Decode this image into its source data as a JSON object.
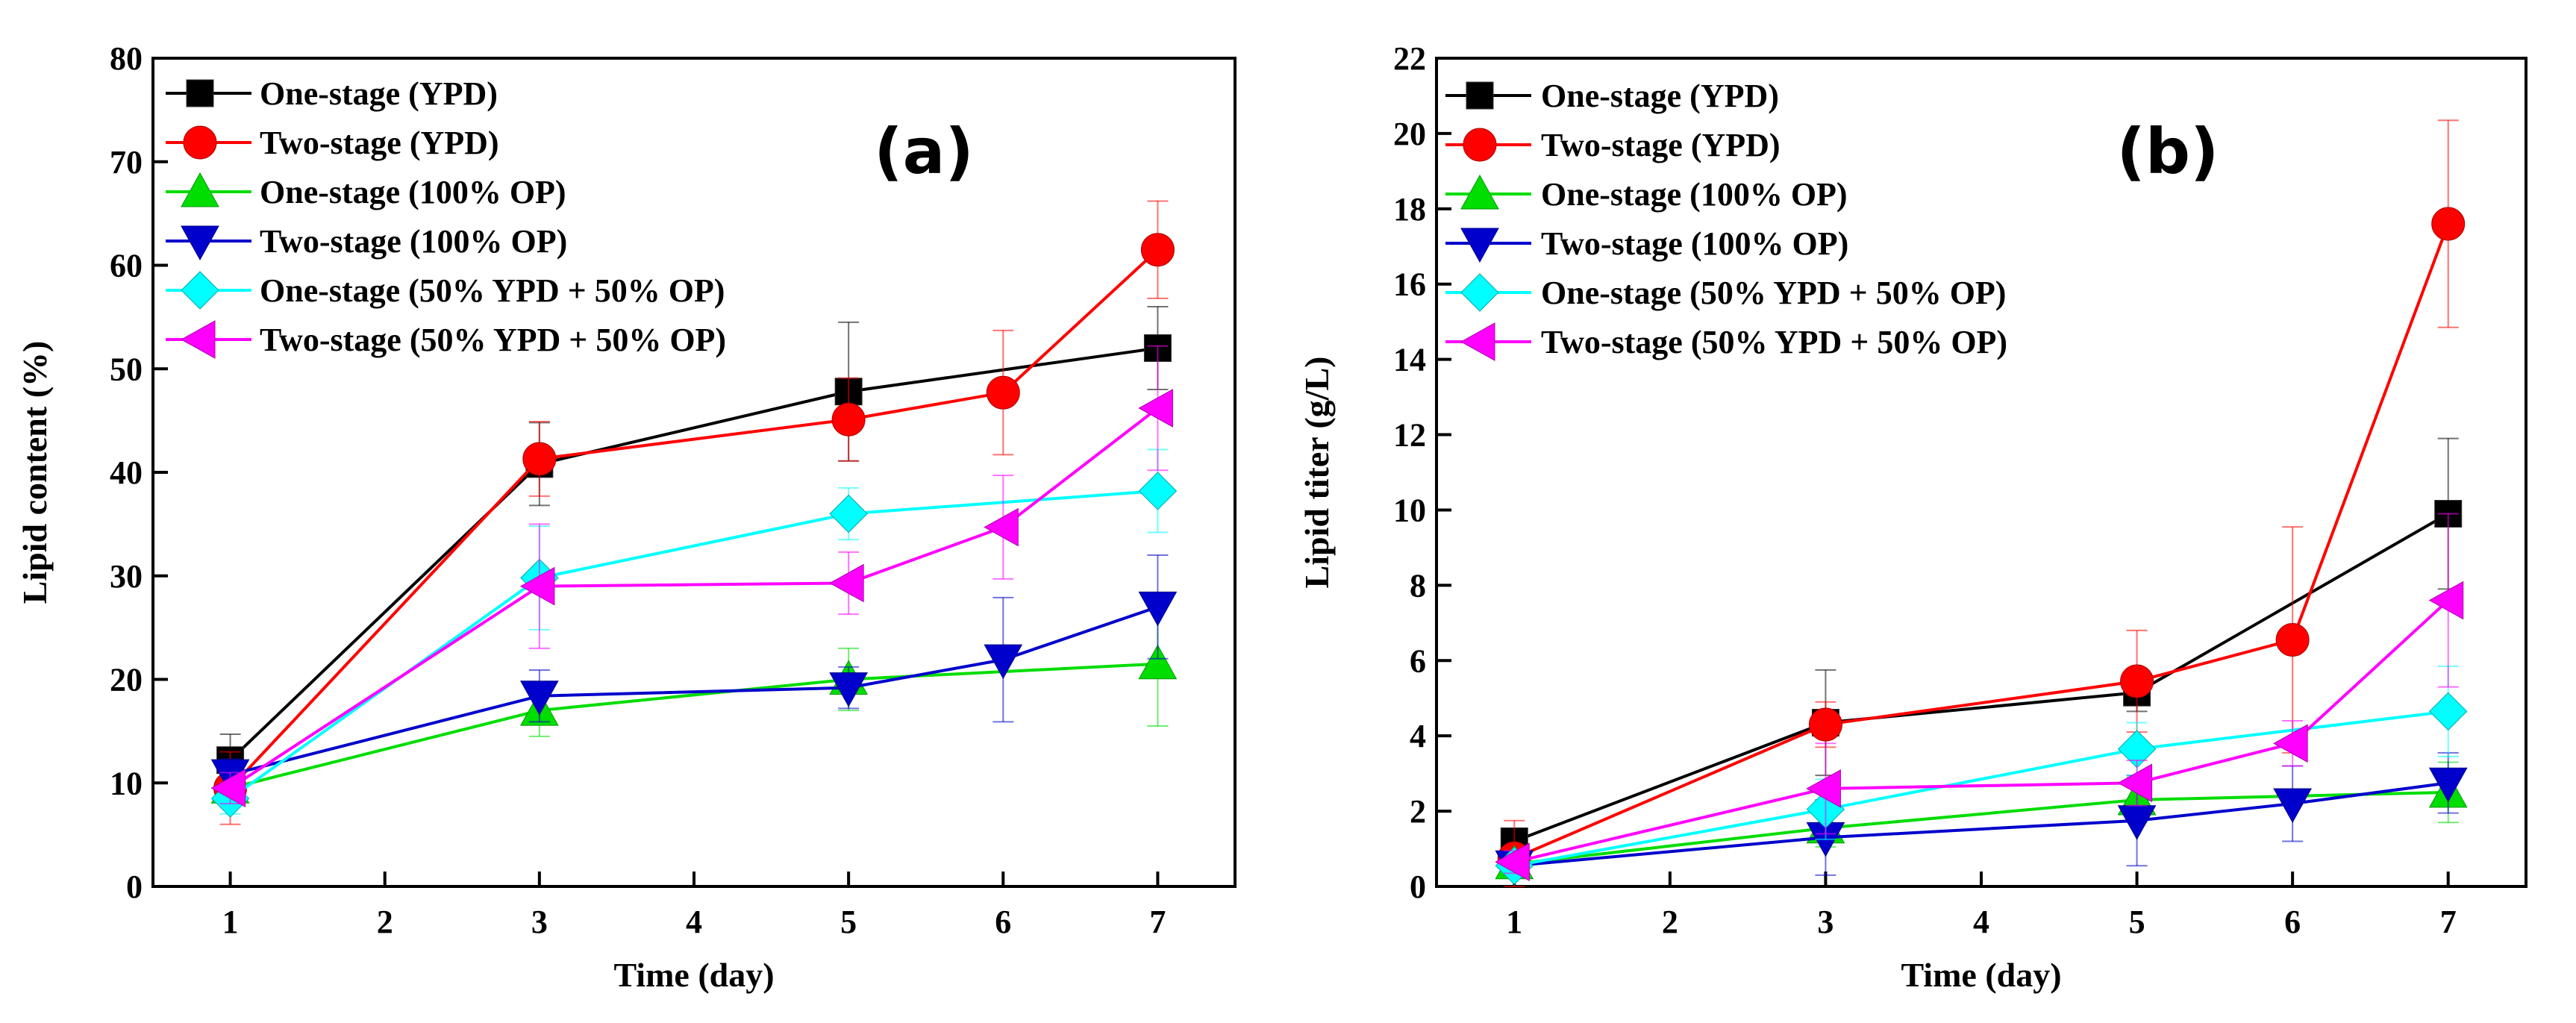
{
  "chart_data": [
    {
      "type": "line",
      "panel_label": "(a)",
      "xlabel": "Time (day)",
      "ylabel": "Lipid content (%)",
      "xlim": [
        0.5,
        7.5
      ],
      "ylim": [
        0,
        80
      ],
      "xticks": [
        1,
        2,
        3,
        4,
        5,
        6,
        7
      ],
      "yticks": [
        0,
        10,
        20,
        30,
        40,
        50,
        60,
        70,
        80
      ],
      "legend_position": "top-left",
      "series": [
        {
          "name": "One-stage (YPD)",
          "color": "#000000",
          "marker": "square",
          "x": [
            1,
            3,
            5,
            7
          ],
          "y": [
            12.2,
            40.8,
            47.8,
            52.0
          ],
          "err": [
            2.5,
            4.0,
            6.7,
            4.0
          ]
        },
        {
          "name": "Two-stage (YPD)",
          "color": "#ff0000",
          "marker": "circle",
          "x": [
            1,
            3,
            5,
            6,
            7
          ],
          "y": [
            9.5,
            41.3,
            45.1,
            47.7,
            61.5
          ],
          "err": [
            3.5,
            3.6,
            4.0,
            6.0,
            4.7
          ]
        },
        {
          "name": "One-stage (100% OP)",
          "color": "#00dd00",
          "marker": "triangle-up",
          "x": [
            1,
            3,
            5,
            7
          ],
          "y": [
            9.5,
            17.0,
            20.0,
            21.5
          ],
          "err": [
            1.5,
            2.5,
            3.0,
            6.0
          ]
        },
        {
          "name": "Two-stage (100% OP)",
          "color": "#0000cc",
          "marker": "triangle-down",
          "x": [
            1,
            3,
            5,
            6,
            7
          ],
          "y": [
            10.8,
            18.4,
            19.2,
            21.9,
            27.0
          ],
          "err": [
            1.5,
            2.5,
            2.0,
            6.0,
            5.0
          ]
        },
        {
          "name": "One-stage (50% YPD + 50% OP)",
          "color": "#00ffff",
          "marker": "diamond",
          "x": [
            1,
            3,
            5,
            7
          ],
          "y": [
            8.5,
            29.8,
            36.0,
            38.2
          ],
          "err": [
            1.5,
            5.0,
            2.5,
            4.0
          ]
        },
        {
          "name": "Two-stage (50% YPD + 50% OP)",
          "color": "#ff00ff",
          "marker": "triangle-left",
          "x": [
            1,
            3,
            5,
            6,
            7
          ],
          "y": [
            9.5,
            29.0,
            29.3,
            34.7,
            46.2
          ],
          "err": [
            1.5,
            6.0,
            3.0,
            5.0,
            6.0
          ]
        }
      ]
    },
    {
      "type": "line",
      "panel_label": "(b)",
      "xlabel": "Time (day)",
      "ylabel": "Lipid titer (g/L)",
      "xlim": [
        0.5,
        7.5
      ],
      "ylim": [
        0,
        22
      ],
      "xticks": [
        1,
        2,
        3,
        4,
        5,
        6,
        7
      ],
      "yticks": [
        0,
        2,
        4,
        6,
        8,
        10,
        12,
        14,
        16,
        18,
        20,
        22
      ],
      "legend_position": "top-left",
      "series": [
        {
          "name": "One-stage (YPD)",
          "color": "#000000",
          "marker": "square",
          "x": [
            1,
            3,
            5,
            7
          ],
          "y": [
            1.2,
            4.35,
            5.15,
            9.9
          ],
          "err": [
            0.3,
            1.4,
            0.5,
            2.0
          ]
        },
        {
          "name": "Two-stage (YPD)",
          "color": "#ff0000",
          "marker": "circle",
          "x": [
            1,
            3,
            5,
            6,
            7
          ],
          "y": [
            0.75,
            4.3,
            5.45,
            6.55,
            17.6
          ],
          "err": [
            1.0,
            0.6,
            1.35,
            3.0,
            2.75
          ]
        },
        {
          "name": "One-stage (100% OP)",
          "color": "#00dd00",
          "marker": "triangle-up",
          "x": [
            1,
            3,
            5,
            7
          ],
          "y": [
            0.6,
            1.55,
            2.3,
            2.5
          ],
          "err": [
            0.3,
            0.5,
            0.6,
            0.8
          ]
        },
        {
          "name": "Two-stage (100% OP)",
          "color": "#0000cc",
          "marker": "triangle-down",
          "x": [
            1,
            3,
            5,
            6,
            7
          ],
          "y": [
            0.55,
            1.3,
            1.75,
            2.2,
            2.75
          ],
          "err": [
            0.2,
            1.0,
            1.2,
            1.0,
            0.8
          ]
        },
        {
          "name": "One-stage (50% YPD + 50% OP)",
          "color": "#00ffff",
          "marker": "diamond",
          "x": [
            1,
            3,
            5,
            7
          ],
          "y": [
            0.55,
            2.05,
            3.65,
            4.65
          ],
          "err": [
            0.2,
            0.8,
            0.7,
            1.2
          ]
        },
        {
          "name": "Two-stage (50% YPD + 50% OP)",
          "color": "#ff00ff",
          "marker": "triangle-left",
          "x": [
            1,
            3,
            5,
            6,
            7
          ],
          "y": [
            0.65,
            2.6,
            2.75,
            3.8,
            7.6
          ],
          "err": [
            0.3,
            1.2,
            0.6,
            0.6,
            2.3
          ]
        }
      ]
    }
  ]
}
